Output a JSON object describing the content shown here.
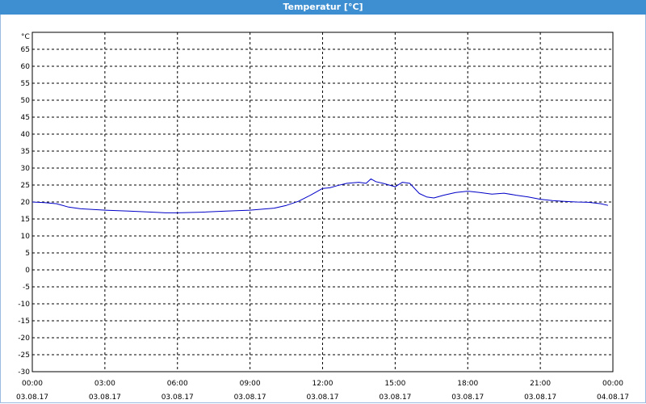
{
  "window": {
    "title": "Temperatur [°C]"
  },
  "colors": {
    "titlebar": "#3d8fd1",
    "line": "#0000c8",
    "grid": "#000000"
  },
  "chart_data": {
    "type": "line",
    "title": "",
    "ylabel": "°C",
    "xlabel": "",
    "ylim": [
      -30,
      70
    ],
    "xlim": [
      0,
      24
    ],
    "grid": true,
    "yticks": [
      65,
      60,
      55,
      50,
      45,
      40,
      35,
      30,
      25,
      20,
      15,
      10,
      5,
      0,
      -5,
      -10,
      -15,
      -20,
      -25,
      -30
    ],
    "xticks": [
      {
        "time": "00:00",
        "date": "03.08.17"
      },
      {
        "time": "03:00",
        "date": "03.08.17"
      },
      {
        "time": "06:00",
        "date": "03.08.17"
      },
      {
        "time": "09:00",
        "date": "03.08.17"
      },
      {
        "time": "12:00",
        "date": "03.08.17"
      },
      {
        "time": "15:00",
        "date": "03.08.17"
      },
      {
        "time": "18:00",
        "date": "03.08.17"
      },
      {
        "time": "21:00",
        "date": "03.08.17"
      },
      {
        "time": "00:00",
        "date": "04.08.17"
      }
    ],
    "series": [
      {
        "x": [
          0,
          0.5,
          1,
          1.5,
          2,
          3,
          4,
          5,
          5.5,
          6,
          7,
          8,
          9,
          10,
          10.5,
          11,
          11.5,
          12,
          12.3,
          12.6,
          13,
          13.5,
          13.8,
          14,
          14.2,
          14.5,
          15,
          15.3,
          15.6,
          16,
          16.3,
          16.6,
          17,
          17.5,
          18,
          18.5,
          19,
          19.5,
          20,
          20.5,
          21,
          21.5,
          22,
          22.5,
          23,
          23.5,
          23.8
        ],
        "y": [
          20,
          19.8,
          19.5,
          18.5,
          18,
          17.6,
          17.3,
          17,
          16.8,
          16.8,
          17,
          17.3,
          17.6,
          18.2,
          19,
          20.2,
          22,
          24,
          24.2,
          24.8,
          25.5,
          25.8,
          25.5,
          26.8,
          26,
          25.5,
          24.5,
          25.8,
          25.5,
          22.5,
          21.5,
          21.2,
          22,
          22.8,
          23.2,
          22.8,
          22.3,
          22.6,
          22,
          21.5,
          20.8,
          20.4,
          20.2,
          20,
          19.9,
          19.5,
          19
        ]
      }
    ]
  }
}
